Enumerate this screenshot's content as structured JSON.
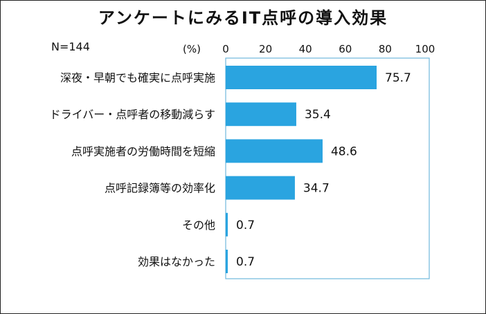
{
  "chart_data": {
    "type": "bar",
    "orientation": "horizontal",
    "title": "アンケートにみるIT点呼の導入効果",
    "sample_label": "N=144",
    "unit_label": "(%)",
    "xlim": [
      0,
      100
    ],
    "ticks": [
      "0",
      "20",
      "40",
      "60",
      "80",
      "100"
    ],
    "categories": [
      "深夜・早朝でも確実に点呼実施",
      "ドライバー・点呼者の移動減らす",
      "点呼実施者の労働時間を短縮",
      "点呼記録簿等の効率化",
      "その他",
      "効果はなかった"
    ],
    "values": [
      75.7,
      35.4,
      48.6,
      34.7,
      0.7,
      0.7
    ],
    "value_labels": [
      "75.7",
      "35.4",
      "48.6",
      "34.7",
      "0.7",
      "0.7"
    ],
    "bar_color": "#2aa4e0",
    "axis_box_color": "#6fb8dc",
    "grid": false
  }
}
